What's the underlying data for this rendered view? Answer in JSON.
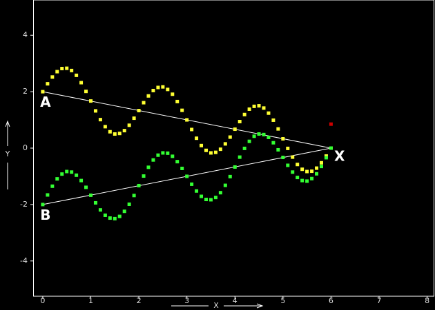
{
  "chart_data": {
    "type": "scatter",
    "x_label": "X",
    "y_label": "Y",
    "xlim": [
      -0.2,
      8.15
    ],
    "ylim": [
      -5.25,
      5.25
    ],
    "xticks": [
      0,
      1,
      2,
      3,
      4,
      5,
      6,
      7,
      8
    ],
    "yticks": [
      -4,
      -2,
      0,
      2,
      4
    ],
    "x": [
      0,
      0.1,
      0.2,
      0.3,
      0.4,
      0.5,
      0.6,
      0.7,
      0.8,
      0.9,
      1,
      1.1,
      1.2,
      1.3,
      1.4,
      1.5,
      1.6,
      1.7,
      1.8,
      1.9,
      2,
      2.1,
      2.2,
      2.3,
      2.4,
      2.5,
      2.6,
      2.7,
      2.8,
      2.9,
      3,
      3.1,
      3.2,
      3.3,
      3.4,
      3.5,
      3.6,
      3.7,
      3.8,
      3.9,
      4,
      4.1,
      4.2,
      4.3,
      4.4,
      4.5,
      4.6,
      4.7,
      4.8,
      4.9,
      5,
      5.1,
      5.2,
      5.3,
      5.4,
      5.5,
      5.6,
      5.7,
      5.8,
      5.9,
      6
    ],
    "series": [
      {
        "color": "#ffff33",
        "values": [
          2.0,
          2.28,
          2.52,
          2.71,
          2.82,
          2.83,
          2.75,
          2.58,
          2.32,
          2.01,
          1.67,
          1.32,
          1.01,
          0.76,
          0.58,
          0.5,
          0.52,
          0.62,
          0.81,
          1.06,
          1.33,
          1.61,
          1.85,
          2.04,
          2.15,
          2.17,
          2.08,
          1.91,
          1.65,
          1.34,
          1.0,
          0.66,
          0.35,
          0.09,
          -0.08,
          -0.17,
          -0.15,
          -0.04,
          0.15,
          0.39,
          0.67,
          0.94,
          1.19,
          1.38,
          1.48,
          1.5,
          1.42,
          1.24,
          0.99,
          0.68,
          0.33,
          -0.01,
          -0.32,
          -0.58,
          -0.75,
          -0.83,
          -0.82,
          -0.71,
          -0.52,
          -0.28,
          0.0
        ]
      },
      {
        "color": "#33ff33",
        "values": [
          -2.0,
          -1.66,
          -1.35,
          -1.09,
          -0.92,
          -0.83,
          -0.85,
          -0.96,
          -1.15,
          -1.39,
          -1.67,
          -1.94,
          -2.19,
          -2.38,
          -2.48,
          -2.5,
          -2.42,
          -2.24,
          -1.99,
          -1.68,
          -1.33,
          -0.99,
          -0.68,
          -0.42,
          -0.25,
          -0.17,
          -0.18,
          -0.29,
          -0.48,
          -0.72,
          -1.0,
          -1.28,
          -1.52,
          -1.71,
          -1.82,
          -1.83,
          -1.75,
          -1.58,
          -1.32,
          -1.01,
          -0.67,
          -0.32,
          -0.01,
          0.24,
          0.42,
          0.5,
          0.48,
          0.38,
          0.19,
          -0.06,
          -0.33,
          -0.61,
          -0.85,
          -1.04,
          -1.15,
          -1.17,
          -1.08,
          -0.91,
          -0.65,
          -0.34,
          0.0
        ]
      },
      {
        "color": "#cc0000",
        "x": [
          6
        ],
        "values": [
          0.85
        ]
      }
    ],
    "lines": [
      {
        "color": "#ffffff",
        "x": [
          0,
          6
        ],
        "values": [
          2,
          0
        ]
      },
      {
        "color": "#ffffff",
        "x": [
          0,
          6
        ],
        "values": [
          -2,
          0
        ]
      }
    ],
    "annotations": [
      {
        "text": "A",
        "x": 0,
        "y": 1.6
      },
      {
        "text": "B",
        "x": 0,
        "y": -2.4
      },
      {
        "text": "X",
        "x": 6.12,
        "y": -0.32
      }
    ]
  }
}
